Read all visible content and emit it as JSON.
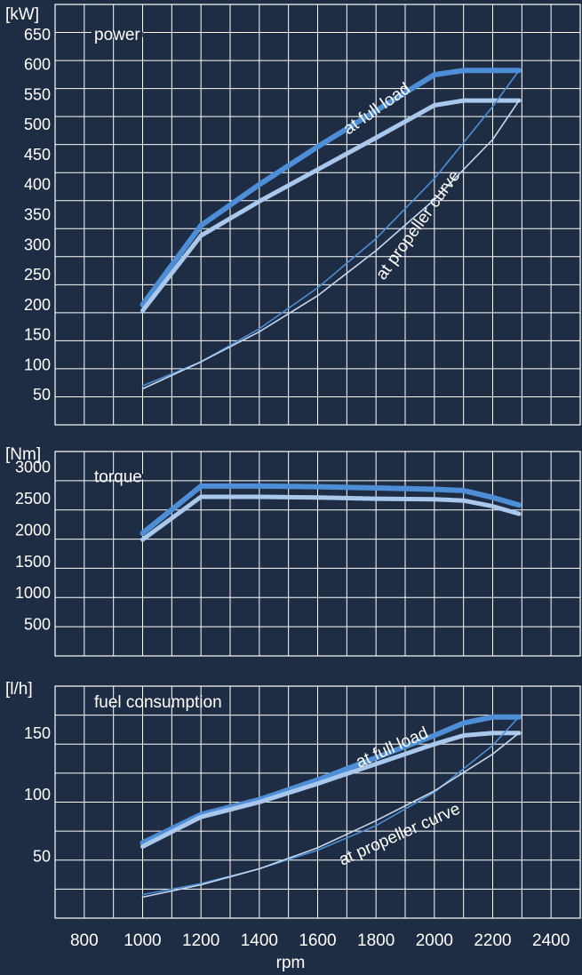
{
  "colors": {
    "background": "#1f2d44",
    "grid": "#ffffff",
    "text": "#ffffff",
    "full_load_dark": "#4d8ed6",
    "full_load_light": "#a9c8ec",
    "propeller_dark": "#4d8ed6",
    "propeller_light": "#c4d8ef"
  },
  "chart_data": [
    {
      "type": "line",
      "title": "power",
      "unit_label": "[kW]",
      "xlim": [
        700,
        2400
      ],
      "ylim": [
        0,
        700
      ],
      "y_ticks": [
        50,
        100,
        150,
        200,
        250,
        300,
        350,
        400,
        450,
        500,
        550,
        600,
        650
      ],
      "grid": true,
      "annotations": [
        "at full load",
        "at propeller curve"
      ],
      "series": [
        {
          "x": [
            1000,
            1200,
            1400,
            1600,
            1800,
            2000,
            2100,
            2200,
            2290
          ],
          "y": [
            200,
            332,
            400,
            463,
            523,
            583,
            590,
            590,
            590
          ]
        },
        {
          "x": [
            1000,
            1200,
            1400,
            1600,
            1800,
            2000,
            2100,
            2200,
            2290
          ],
          "y": [
            190,
            315,
            372,
            425,
            478,
            532,
            540,
            540,
            540
          ]
        },
        {
          "x": [
            1000,
            1200,
            1400,
            1600,
            1800,
            2000,
            2200,
            2290
          ],
          "y": [
            65,
            105,
            160,
            228,
            310,
            410,
            530,
            590
          ]
        },
        {
          "x": [
            1000,
            1200,
            1400,
            1600,
            1800,
            2000,
            2200,
            2290
          ],
          "y": [
            60,
            105,
            155,
            215,
            290,
            375,
            475,
            540
          ]
        }
      ]
    },
    {
      "type": "line",
      "title": "torque",
      "unit_label": "[Nm]",
      "xlim": [
        700,
        2400
      ],
      "ylim": [
        0,
        3250
      ],
      "y_ticks": [
        500,
        1000,
        1500,
        2000,
        2500,
        3000
      ],
      "grid": true,
      "series": [
        {
          "x": [
            1000,
            1200,
            1400,
            1600,
            1800,
            2000,
            2100,
            2200,
            2290
          ],
          "y": [
            1950,
            2700,
            2700,
            2690,
            2670,
            2650,
            2630,
            2520,
            2400
          ]
        },
        {
          "x": [
            1000,
            1200,
            1400,
            1600,
            1800,
            2000,
            2100,
            2200,
            2290
          ],
          "y": [
            1850,
            2530,
            2530,
            2520,
            2500,
            2490,
            2470,
            2380,
            2260
          ]
        }
      ]
    },
    {
      "type": "line",
      "title": "fuel consumption",
      "unit_label": "[l/h]",
      "xlim": [
        700,
        2400
      ],
      "ylim": [
        0,
        188
      ],
      "y_ticks": [
        50,
        100,
        150
      ],
      "grid": true,
      "annotations": [
        "at full load",
        "at propeller curve"
      ],
      "series": [
        {
          "x": [
            1000,
            1200,
            1400,
            1600,
            1800,
            2000,
            2100,
            2200,
            2290
          ],
          "y": [
            61,
            84,
            96,
            112,
            130,
            148,
            158,
            163,
            163
          ]
        },
        {
          "x": [
            1000,
            1200,
            1400,
            1600,
            1800,
            2000,
            2100,
            2200,
            2290
          ],
          "y": [
            58,
            82,
            94,
            109,
            125,
            141,
            148,
            150,
            150
          ]
        },
        {
          "x": [
            1000,
            1200,
            1400,
            1600,
            1800,
            2000,
            2200,
            2290
          ],
          "y": [
            19,
            28,
            40,
            55,
            75,
            102,
            140,
            163
          ]
        },
        {
          "x": [
            1000,
            1200,
            1400,
            1600,
            1800,
            2000,
            2200,
            2290
          ],
          "y": [
            17,
            27,
            40,
            57,
            79,
            103,
            133,
            150
          ]
        }
      ]
    }
  ],
  "x_axis": {
    "label": "rpm",
    "ticks": [
      800,
      1000,
      1200,
      1400,
      1600,
      1800,
      2000,
      2200,
      2400
    ]
  }
}
